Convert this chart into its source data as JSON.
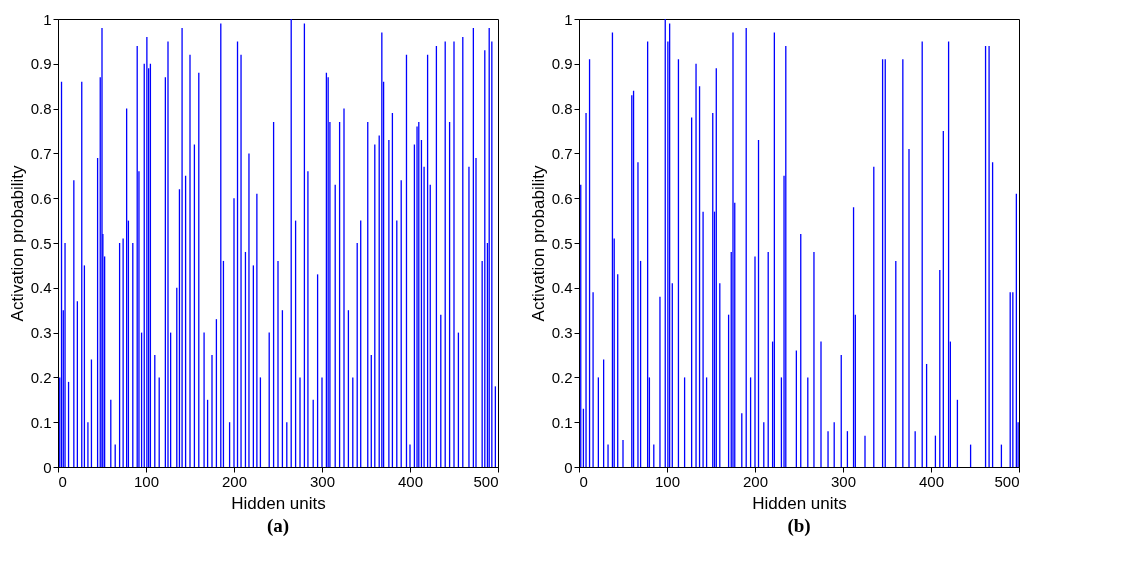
{
  "chart_data": [
    {
      "type": "bar",
      "title": "(a)",
      "xlabel": "Hidden units",
      "ylabel": "Activation probability",
      "color": "#0000ff",
      "xlim": [
        0,
        500
      ],
      "xticks": [
        0,
        100,
        200,
        300,
        400,
        500
      ],
      "ylim": [
        0,
        1
      ],
      "yticks": [
        0,
        0.1,
        0.2,
        0.3,
        0.4,
        0.5,
        0.6,
        0.7,
        0.8,
        0.9,
        1
      ],
      "grid": false,
      "x": [
        2,
        4,
        6,
        8,
        12,
        18,
        22,
        27,
        30,
        34,
        38,
        45,
        48,
        50,
        51,
        53,
        60,
        65,
        70,
        74,
        78,
        80,
        85,
        90,
        92,
        95,
        98,
        101,
        103,
        105,
        110,
        115,
        122,
        125,
        128,
        135,
        138,
        141,
        145,
        150,
        155,
        160,
        166,
        170,
        175,
        180,
        185,
        188,
        195,
        200,
        204,
        208,
        213,
        217,
        222,
        226,
        230,
        240,
        245,
        250,
        255,
        260,
        265,
        270,
        275,
        280,
        284,
        290,
        295,
        300,
        305,
        307,
        309,
        315,
        320,
        325,
        330,
        335,
        340,
        344,
        352,
        356,
        360,
        365,
        368,
        370,
        376,
        380,
        385,
        390,
        396,
        400,
        405,
        408,
        410,
        413,
        416,
        420,
        423,
        430,
        435,
        440,
        445,
        450,
        455,
        460,
        467,
        472,
        475,
        482,
        485,
        488,
        490,
        493,
        497
      ],
      "values": [
        0.2,
        0.86,
        0.35,
        0.5,
        0.19,
        0.64,
        0.37,
        0.86,
        0.45,
        0.1,
        0.24,
        0.69,
        0.87,
        0.98,
        0.52,
        0.47,
        0.15,
        0.05,
        0.5,
        0.51,
        0.8,
        0.55,
        0.5,
        0.94,
        0.66,
        0.3,
        0.9,
        0.96,
        0.89,
        0.9,
        0.25,
        0.2,
        0.87,
        0.95,
        0.3,
        0.4,
        0.62,
        0.98,
        0.65,
        0.92,
        0.72,
        0.88,
        0.3,
        0.15,
        0.25,
        0.33,
        0.99,
        0.46,
        0.1,
        0.6,
        0.95,
        0.92,
        0.48,
        0.7,
        0.45,
        0.61,
        0.2,
        0.3,
        0.77,
        0.46,
        0.35,
        0.1,
        1,
        0.55,
        0.2,
        0.99,
        0.66,
        0.15,
        0.43,
        0.2,
        0.88,
        0.87,
        0.77,
        0.63,
        0.77,
        0.8,
        0.35,
        0.2,
        0.5,
        0.55,
        0.77,
        0.25,
        0.72,
        0.74,
        0.97,
        0.86,
        0.73,
        0.79,
        0.55,
        0.64,
        0.92,
        0.05,
        0.72,
        0.76,
        0.77,
        0.73,
        0.67,
        0.92,
        0.63,
        0.94,
        0.34,
        0.95,
        0.77,
        0.95,
        0.3,
        0.96,
        0.67,
        0.98,
        0.69,
        0.46,
        0.93,
        0.5,
        0.98,
        0.95,
        0.18
      ]
    },
    {
      "type": "bar",
      "title": "(b)",
      "xlabel": "Hidden units",
      "ylabel": "Activation probability",
      "color": "#0000ff",
      "xlim": [
        0,
        500
      ],
      "xticks": [
        0,
        100,
        200,
        300,
        400,
        500
      ],
      "ylim": [
        0,
        1
      ],
      "yticks": [
        0,
        0.1,
        0.2,
        0.3,
        0.4,
        0.5,
        0.6,
        0.7,
        0.8,
        0.9,
        1
      ],
      "grid": false,
      "x": [
        2,
        5,
        8,
        12,
        16,
        22,
        28,
        33,
        38,
        40,
        44,
        50,
        60,
        62,
        67,
        70,
        78,
        80,
        85,
        92,
        98,
        101,
        103,
        106,
        113,
        120,
        128,
        133,
        137,
        141,
        145,
        152,
        154,
        156,
        160,
        170,
        173,
        175,
        177,
        185,
        190,
        195,
        200,
        204,
        210,
        215,
        220,
        222,
        230,
        233,
        235,
        247,
        252,
        260,
        267,
        275,
        283,
        290,
        298,
        305,
        312,
        314,
        325,
        335,
        345,
        348,
        360,
        368,
        375,
        382,
        390,
        395,
        405,
        410,
        414,
        420,
        422,
        430,
        445,
        462,
        466,
        470,
        480,
        490,
        493,
        497,
        499
      ],
      "values": [
        0.63,
        0.13,
        0.79,
        0.91,
        0.39,
        0.2,
        0.24,
        0.05,
        0.97,
        0.51,
        0.43,
        0.06,
        0.83,
        0.84,
        0.68,
        0.46,
        0.95,
        0.2,
        0.05,
        0.38,
        1,
        0.95,
        0.99,
        0.41,
        0.91,
        0.2,
        0.78,
        0.9,
        0.85,
        0.57,
        0.2,
        0.79,
        0.57,
        0.89,
        0.41,
        0.34,
        0.48,
        0.97,
        0.59,
        0.12,
        0.98,
        0.2,
        0.47,
        0.73,
        0.1,
        0.48,
        0.28,
        0.97,
        0.2,
        0.65,
        0.94,
        0.26,
        0.52,
        0.2,
        0.48,
        0.28,
        0.08,
        0.1,
        0.25,
        0.08,
        0.58,
        0.34,
        0.07,
        0.67,
        0.91,
        0.91,
        0.46,
        0.91,
        0.71,
        0.08,
        0.95,
        0.23,
        0.07,
        0.44,
        0.75,
        0.95,
        0.28,
        0.15,
        0.05,
        0.94,
        0.94,
        0.68,
        0.05,
        0.39,
        0.39,
        0.61,
        0.1
      ]
    }
  ]
}
